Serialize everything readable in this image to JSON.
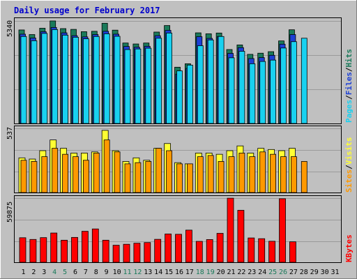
{
  "title": "Daily usage for February 2017",
  "colors": {
    "background": "#c0c0c0",
    "title": "#0000cc",
    "hits": "#1a7a5a",
    "files": "#1c3fd6",
    "pages": "#19d1f0",
    "visits": "#ffff33",
    "sites": "#ff9900",
    "kbytes": "#ff0000",
    "weekend_day": "#1a7a5a",
    "weekday": "#000000"
  },
  "right_labels": {
    "hits": "Hits",
    "files": "Files",
    "pages": "Pages",
    "visits": "Visits",
    "sites": "Sites",
    "kbytes": "KBytes",
    "sep": "/"
  },
  "chart_data": [
    {
      "type": "bar",
      "title": "Daily usage for February 2017",
      "panel": "hits-files-pages",
      "categories": [
        "1",
        "2",
        "3",
        "4",
        "5",
        "6",
        "7",
        "8",
        "9",
        "10",
        "11",
        "12",
        "13",
        "14",
        "15",
        "16",
        "17",
        "18",
        "19",
        "20",
        "21",
        "22",
        "23",
        "24",
        "25",
        "26",
        "27",
        "28",
        "29",
        "30",
        "31"
      ],
      "ymax_label": "5340",
      "ylim": [
        0,
        5340
      ],
      "series": [
        {
          "name": "Hits",
          "values": [
            4870,
            4630,
            4960,
            5340,
            4940,
            4900,
            4780,
            4800,
            5220,
            4860,
            4190,
            4140,
            4190,
            4760,
            5100,
            2930,
            3110,
            4720,
            4670,
            4710,
            3850,
            4090,
            3600,
            3660,
            3740,
            4300,
            4880,
            null,
            null,
            null,
            null
          ]
        },
        {
          "name": "Files",
          "values": [
            4650,
            4450,
            4780,
            5000,
            4720,
            4570,
            4510,
            4630,
            4800,
            4650,
            4010,
            3970,
            4020,
            4570,
            4850,
            2570,
            2870,
            4520,
            4430,
            4530,
            3650,
            3950,
            3380,
            3430,
            3550,
            4130,
            4630,
            null,
            null,
            null,
            null
          ]
        },
        {
          "name": "Pages",
          "values": [
            4530,
            4310,
            4690,
            4890,
            4600,
            4490,
            4410,
            4530,
            4670,
            4540,
            3850,
            3880,
            3920,
            4440,
            4710,
            2740,
            3040,
            4050,
            4350,
            4530,
            3420,
            3760,
            3110,
            3230,
            3300,
            3930,
            4260,
            4440,
            null,
            null,
            null
          ]
        }
      ]
    },
    {
      "type": "bar",
      "panel": "visits-sites",
      "categories": [
        "1",
        "2",
        "3",
        "4",
        "5",
        "6",
        "7",
        "8",
        "9",
        "10",
        "11",
        "12",
        "13",
        "14",
        "15",
        "16",
        "17",
        "18",
        "19",
        "20",
        "21",
        "22",
        "23",
        "24",
        "25",
        "26",
        "27",
        "28",
        "29",
        "30",
        "31"
      ],
      "ymax_label": "537",
      "ylim": [
        0,
        537
      ],
      "series": [
        {
          "name": "Visits",
          "values": [
            290,
            280,
            350,
            440,
            370,
            330,
            330,
            340,
            520,
            350,
            260,
            290,
            270,
            370,
            410,
            250,
            240,
            330,
            330,
            320,
            350,
            390,
            330,
            370,
            360,
            350,
            370,
            null,
            null,
            null,
            null
          ]
        },
        {
          "name": "Sites",
          "values": [
            270,
            260,
            300,
            370,
            320,
            300,
            270,
            330,
            440,
            340,
            240,
            250,
            260,
            370,
            350,
            240,
            240,
            300,
            310,
            260,
            300,
            330,
            300,
            340,
            320,
            300,
            300,
            260,
            null,
            null,
            null
          ]
        }
      ]
    },
    {
      "type": "bar",
      "panel": "kbytes",
      "categories": [
        "1",
        "2",
        "3",
        "4",
        "5",
        "6",
        "7",
        "8",
        "9",
        "10",
        "11",
        "12",
        "13",
        "14",
        "15",
        "16",
        "17",
        "18",
        "19",
        "20",
        "21",
        "22",
        "23",
        "24",
        "25",
        "26",
        "27",
        "28",
        "29",
        "30",
        "31"
      ],
      "ymax_label": "59875",
      "ylim": [
        0,
        59875
      ],
      "series": [
        {
          "name": "KBytes",
          "values": [
            22900,
            21300,
            23000,
            27300,
            20600,
            23200,
            28900,
            31100,
            20600,
            15900,
            16800,
            17800,
            18400,
            21400,
            26400,
            26100,
            30000,
            19500,
            21200,
            27000,
            59800,
            48500,
            22700,
            22000,
            19600,
            59300,
            19100,
            null,
            null,
            null,
            null
          ]
        }
      ]
    }
  ],
  "days": [
    {
      "label": "1",
      "weekend": false
    },
    {
      "label": "2",
      "weekend": false
    },
    {
      "label": "3",
      "weekend": false
    },
    {
      "label": "4",
      "weekend": true
    },
    {
      "label": "5",
      "weekend": true
    },
    {
      "label": "6",
      "weekend": false
    },
    {
      "label": "7",
      "weekend": false
    },
    {
      "label": "8",
      "weekend": false
    },
    {
      "label": "9",
      "weekend": false
    },
    {
      "label": "10",
      "weekend": false
    },
    {
      "label": "11",
      "weekend": true
    },
    {
      "label": "12",
      "weekend": true
    },
    {
      "label": "13",
      "weekend": false
    },
    {
      "label": "14",
      "weekend": false
    },
    {
      "label": "15",
      "weekend": false
    },
    {
      "label": "16",
      "weekend": false
    },
    {
      "label": "17",
      "weekend": false
    },
    {
      "label": "18",
      "weekend": true
    },
    {
      "label": "19",
      "weekend": true
    },
    {
      "label": "20",
      "weekend": false
    },
    {
      "label": "21",
      "weekend": false
    },
    {
      "label": "22",
      "weekend": false
    },
    {
      "label": "23",
      "weekend": false
    },
    {
      "label": "24",
      "weekend": false
    },
    {
      "label": "25",
      "weekend": true
    },
    {
      "label": "26",
      "weekend": true
    },
    {
      "label": "27",
      "weekend": false
    },
    {
      "label": "28",
      "weekend": false
    },
    {
      "label": "29",
      "weekend": false
    },
    {
      "label": "30",
      "weekend": false
    },
    {
      "label": "31",
      "weekend": false
    }
  ]
}
